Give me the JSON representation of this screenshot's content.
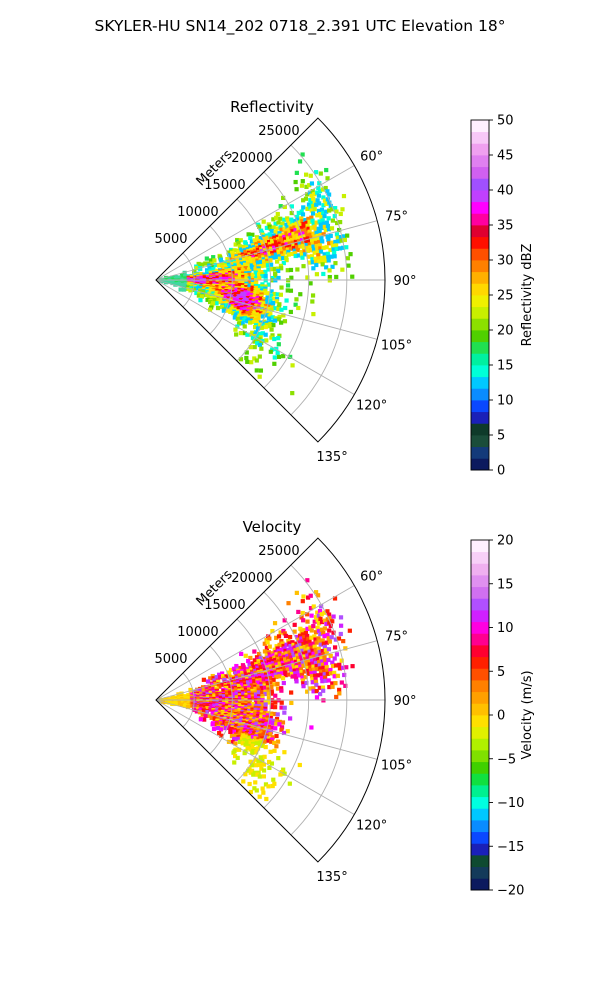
{
  "suptitle": "SKYLER-HU  SN14_202  0718_2.391 UTC Elevation 18°",
  "panels": [
    {
      "title": "Reflectivity",
      "radial_label": "Meters",
      "range_ticks": [
        "5000",
        "10000",
        "15000",
        "20000",
        "25000"
      ],
      "range_values": [
        5000,
        10000,
        15000,
        20000,
        25000
      ],
      "range_max": 30000,
      "azimuth_ticks": [
        "60°",
        "75°",
        "90°",
        "105°",
        "120°",
        "135°"
      ],
      "azimuth_values": [
        60,
        75,
        90,
        105,
        120,
        135
      ],
      "azimuth_range": [
        45,
        135
      ],
      "colorbar": {
        "label": "Reflectivity dBZ",
        "ticks": [
          "0",
          "5",
          "10",
          "15",
          "20",
          "25",
          "30",
          "35",
          "40",
          "45",
          "50"
        ],
        "tick_values": [
          0,
          5,
          10,
          15,
          20,
          25,
          30,
          35,
          40,
          45,
          50
        ],
        "range": [
          0,
          50
        ],
        "stops": [
          "#0c1a5e",
          "#133a7a",
          "#1a4d3a",
          "#0e3a2a",
          "#1a20b8",
          "#0a48ff",
          "#0a8cff",
          "#00c8ff",
          "#00ffd8",
          "#00f0a0",
          "#20e050",
          "#50d000",
          "#8ce000",
          "#c8f000",
          "#f0f000",
          "#ffd800",
          "#ffb000",
          "#ff8000",
          "#ff5000",
          "#ff1000",
          "#e00030",
          "#ff00a0",
          "#ff00ff",
          "#c040ff",
          "#a050ff",
          "#d060f0",
          "#e080f0",
          "#f0a0f0",
          "#f8c8f8",
          "#fff0ff"
        ]
      }
    },
    {
      "title": "Velocity",
      "radial_label": "Meters",
      "range_ticks": [
        "5000",
        "10000",
        "15000",
        "20000",
        "25000"
      ],
      "range_values": [
        5000,
        10000,
        15000,
        20000,
        25000
      ],
      "range_max": 30000,
      "azimuth_ticks": [
        "60°",
        "75°",
        "90°",
        "105°",
        "120°",
        "135°"
      ],
      "azimuth_values": [
        60,
        75,
        90,
        105,
        120,
        135
      ],
      "azimuth_range": [
        45,
        135
      ],
      "colorbar": {
        "label": "Velocity (m/s)",
        "ticks": [
          "20",
          "15",
          "10",
          "5",
          "0",
          "−5",
          "−10",
          "−15",
          "−20"
        ],
        "tick_values": [
          20,
          15,
          10,
          5,
          0,
          -5,
          -10,
          -15,
          -20
        ],
        "range": [
          -20,
          20
        ],
        "stops": [
          "#0c1a5e",
          "#133a5a",
          "#0e4a30",
          "#1a20b8",
          "#0a48ff",
          "#0a8cff",
          "#00c8ff",
          "#00ffe0",
          "#00f090",
          "#10e040",
          "#40d000",
          "#80e000",
          "#b0f000",
          "#e0f000",
          "#ffe000",
          "#ffc000",
          "#ffa000",
          "#ff8000",
          "#ff5000",
          "#ff2000",
          "#ff0030",
          "#ff0090",
          "#ff00e0",
          "#d020ff",
          "#b050ff",
          "#d070f0",
          "#e090f0",
          "#f0b0f0",
          "#f8d0f8",
          "#fff0ff"
        ]
      }
    }
  ]
}
